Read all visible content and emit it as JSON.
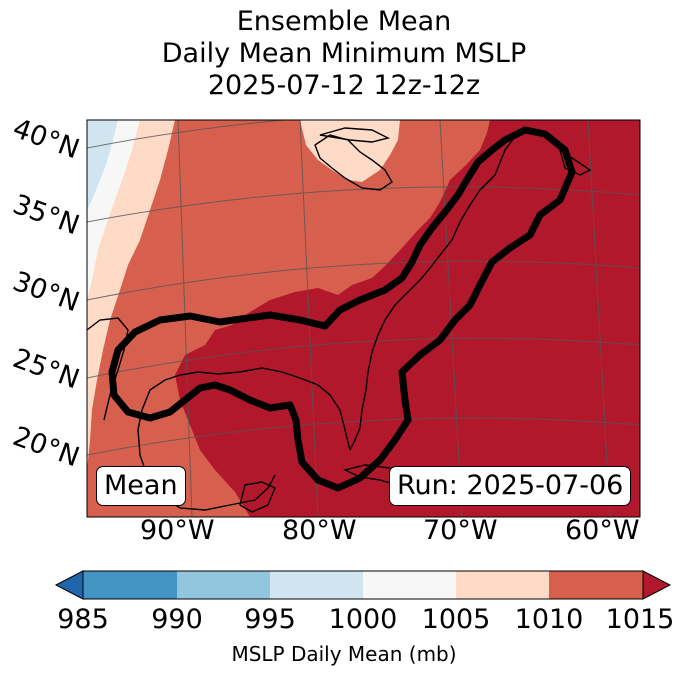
{
  "title": {
    "line1": "Ensemble Mean",
    "line2": "Daily Mean Minimum MSLP",
    "line3": "2025-07-12 12z-12z"
  },
  "latitude_labels": [
    "40°N",
    "35°N",
    "30°N",
    "25°N",
    "20°N"
  ],
  "longitude_labels": [
    "90°W",
    "80°W",
    "70°W",
    "60°W"
  ],
  "mean_label": "Mean",
  "run_label": "Run: 2025-07-06",
  "colorbar": {
    "label": "MSLP Daily Mean (mb)",
    "ticks": [
      "985",
      "990",
      "995",
      "1000",
      "1005",
      "1010",
      "1015"
    ],
    "colors": {
      "below": "#2166ac",
      "b985_990": "#4393c3",
      "b990_995": "#92c5de",
      "b995_1000": "#d1e5f0",
      "b1000_1005": "#f7f7f7",
      "b1005_1010": "#fddbc7",
      "b1010_1015": "#d6604d",
      "above": "#b2182b"
    }
  },
  "colors": {
    "contour": "#000000",
    "coastline": "#000000",
    "gridline": "#555555"
  }
}
